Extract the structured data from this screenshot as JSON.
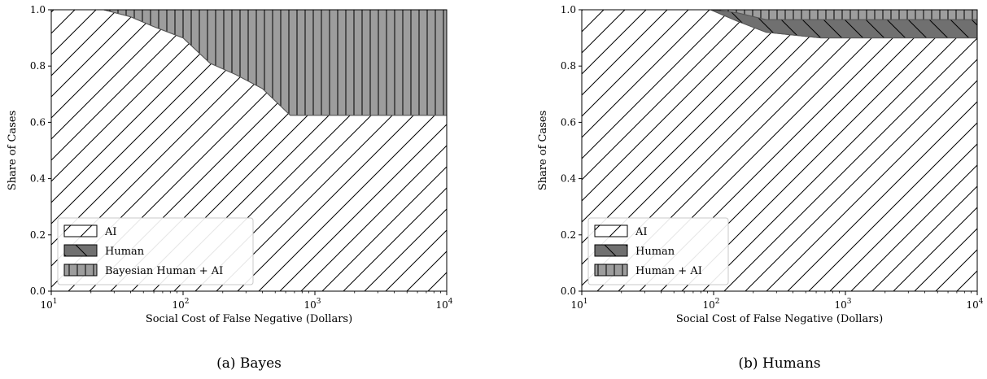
{
  "chart_data": [
    {
      "type": "area",
      "stacked": true,
      "caption": "(a) Bayes",
      "xlabel": "Social Cost of False Negative (Dollars)",
      "ylabel": "Share of Cases",
      "xscale": "log",
      "xlim": [
        10,
        10000
      ],
      "ylim": [
        0,
        1
      ],
      "x_ticks": [
        {
          "value": 10,
          "base": "10",
          "exp": "1"
        },
        {
          "value": 100,
          "base": "10",
          "exp": "2"
        },
        {
          "value": 1000,
          "base": "10",
          "exp": "3"
        },
        {
          "value": 10000,
          "base": "10",
          "exp": "4"
        }
      ],
      "y_ticks": [
        {
          "value": 0,
          "label": "0.0"
        },
        {
          "value": 0.2,
          "label": "0.2"
        },
        {
          "value": 0.4,
          "label": "0.4"
        },
        {
          "value": 0.6,
          "label": "0.6"
        },
        {
          "value": 0.8,
          "label": "0.8"
        },
        {
          "value": 1.0,
          "label": "1.0"
        }
      ],
      "grid": false,
      "legend_position": "lower-left",
      "x": [
        10,
        25,
        40,
        60,
        100,
        160,
        250,
        400,
        650,
        1000,
        3000,
        10000
      ],
      "series": [
        {
          "name": "AI",
          "pattern": "diagonal-forward",
          "color": "#ffffff",
          "values": [
            1.0,
            1.0,
            0.975,
            0.94,
            0.9,
            0.81,
            0.77,
            0.72,
            0.625,
            0.625,
            0.625,
            0.625
          ]
        },
        {
          "name": "Human",
          "pattern": "diagonal-back",
          "color": "#707070",
          "values": [
            0,
            0,
            0,
            0,
            0,
            0,
            0,
            0,
            0,
            0,
            0,
            0
          ]
        },
        {
          "name": "Bayesian Human + AI",
          "pattern": "vertical",
          "color": "#9d9d9d",
          "values": [
            0.0,
            0.0,
            0.025,
            0.06,
            0.1,
            0.19,
            0.23,
            0.28,
            0.375,
            0.375,
            0.375,
            0.375
          ]
        }
      ]
    },
    {
      "type": "area",
      "stacked": true,
      "caption": "(b) Humans",
      "xlabel": "Social Cost of False Negative (Dollars)",
      "ylabel": "Share of Cases",
      "xscale": "log",
      "xlim": [
        10,
        10000
      ],
      "ylim": [
        0,
        1
      ],
      "x_ticks": [
        {
          "value": 10,
          "base": "10",
          "exp": "1"
        },
        {
          "value": 100,
          "base": "10",
          "exp": "2"
        },
        {
          "value": 1000,
          "base": "10",
          "exp": "3"
        },
        {
          "value": 10000,
          "base": "10",
          "exp": "4"
        }
      ],
      "y_ticks": [
        {
          "value": 0,
          "label": "0.0"
        },
        {
          "value": 0.2,
          "label": "0.2"
        },
        {
          "value": 0.4,
          "label": "0.4"
        },
        {
          "value": 0.6,
          "label": "0.6"
        },
        {
          "value": 0.8,
          "label": "0.8"
        },
        {
          "value": 1.0,
          "label": "1.0"
        }
      ],
      "grid": false,
      "legend_position": "lower-left",
      "x": [
        10,
        95,
        150,
        250,
        650,
        1000,
        3000,
        10000
      ],
      "series": [
        {
          "name": "AI",
          "pattern": "diagonal-forward",
          "color": "#ffffff",
          "values": [
            1.0,
            1.0,
            0.96,
            0.92,
            0.9,
            0.9,
            0.9,
            0.9
          ]
        },
        {
          "name": "Human",
          "pattern": "diagonal-back",
          "color": "#707070",
          "values": [
            0.0,
            0.0,
            0.03,
            0.045,
            0.065,
            0.065,
            0.065,
            0.065
          ]
        },
        {
          "name": "Human + AI",
          "pattern": "vertical",
          "color": "#9d9d9d",
          "values": [
            0.0,
            0.0,
            0.01,
            0.035,
            0.035,
            0.035,
            0.035,
            0.035
          ]
        }
      ]
    }
  ]
}
